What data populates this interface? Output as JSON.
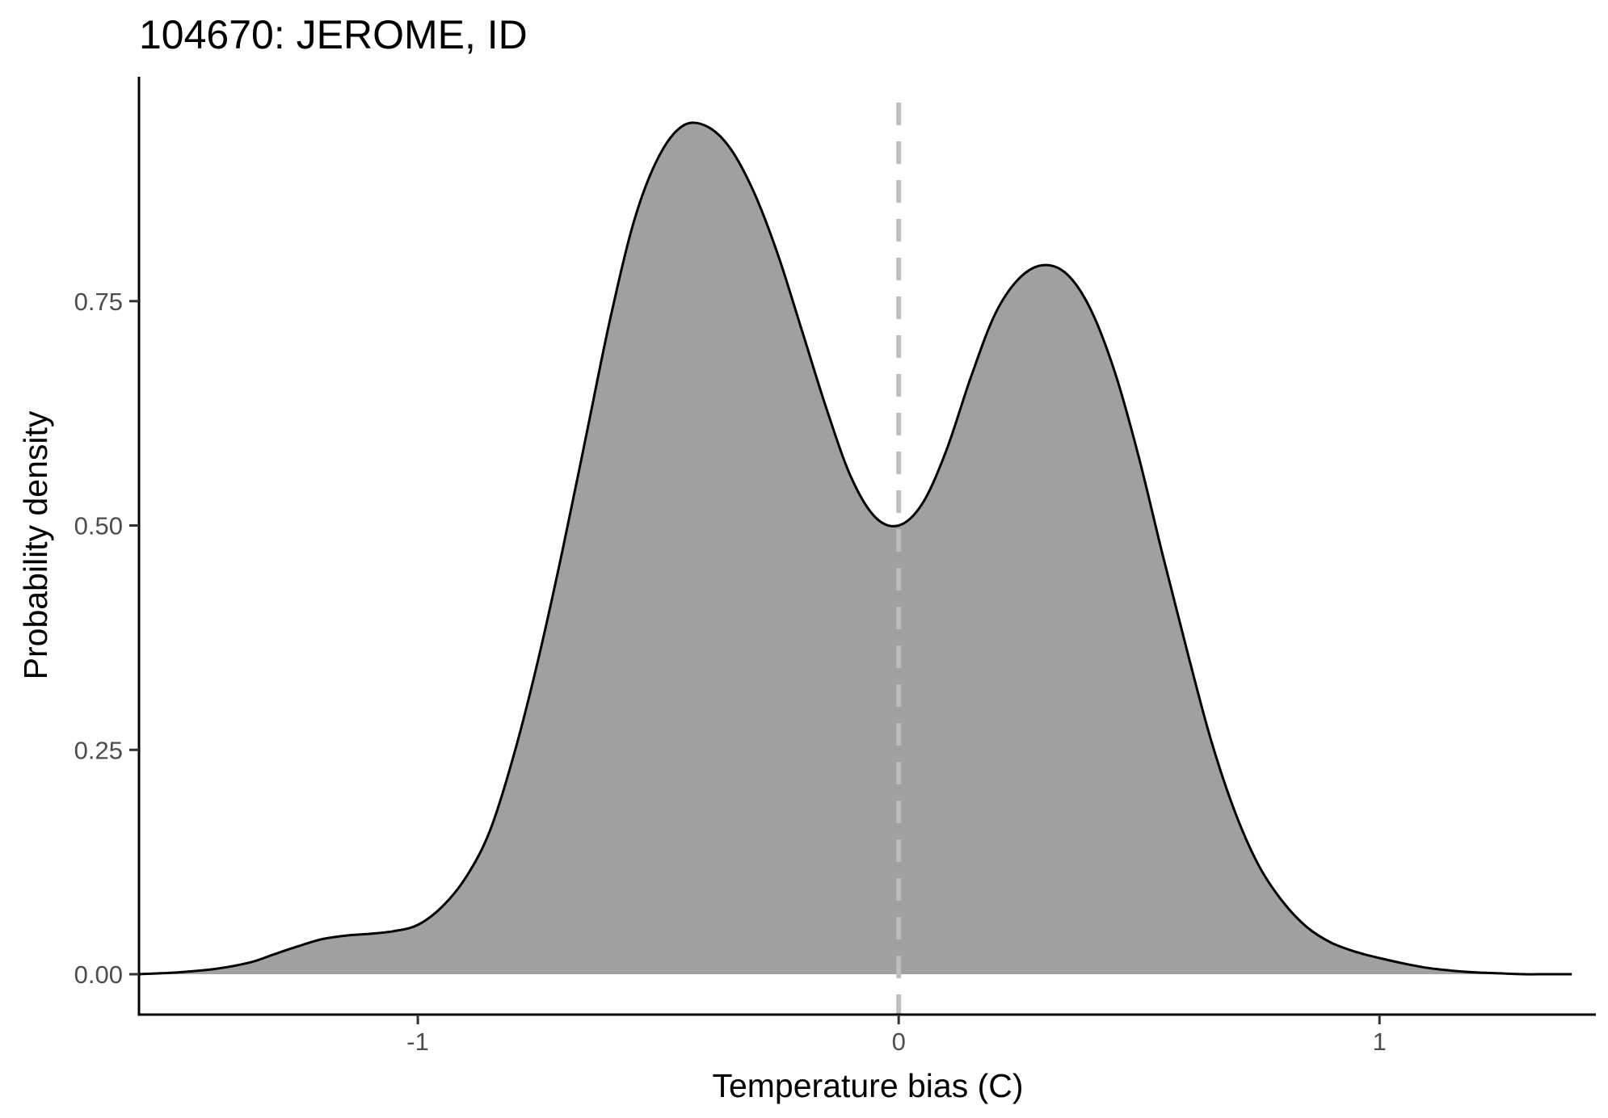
{
  "chart_data": {
    "type": "area",
    "title": "104670: JEROME, ID",
    "xlabel": "Temperature bias (C)",
    "ylabel": "Probability density",
    "xlim": [
      -1.58,
      1.45
    ],
    "ylim": [
      -0.045,
      1.0
    ],
    "x_ticks": [
      {
        "value": -1,
        "label": "-1"
      },
      {
        "value": 0,
        "label": "0"
      },
      {
        "value": 1,
        "label": "1"
      }
    ],
    "y_ticks": [
      {
        "value": 0,
        "label": "0.00"
      },
      {
        "value": 0.25,
        "label": "0.25"
      },
      {
        "value": 0.5,
        "label": "0.50"
      },
      {
        "value": 0.75,
        "label": "0.75"
      }
    ],
    "reference_line": {
      "x": 0,
      "style": "dashed",
      "color": "#bebebe"
    },
    "fill_color": "#a0a0a0",
    "line_color": "#000000",
    "grid": false,
    "legend": "none",
    "series": [
      {
        "x": [
          -1.58,
          -1.5,
          -1.42,
          -1.35,
          -1.3,
          -1.25,
          -1.2,
          -1.15,
          -1.1,
          -1.05,
          -1.0,
          -0.95,
          -0.9,
          -0.85,
          -0.8,
          -0.75,
          -0.7,
          -0.65,
          -0.6,
          -0.55,
          -0.5,
          -0.45,
          -0.4,
          -0.35,
          -0.3,
          -0.25,
          -0.2,
          -0.15,
          -0.1,
          -0.05,
          0.0,
          0.05,
          0.1,
          0.15,
          0.2,
          0.25,
          0.3,
          0.35,
          0.4,
          0.45,
          0.5,
          0.55,
          0.6,
          0.65,
          0.7,
          0.75,
          0.8,
          0.85,
          0.9,
          0.95,
          1.0,
          1.05,
          1.1,
          1.15,
          1.2,
          1.25,
          1.3,
          1.35,
          1.4
        ],
        "y": [
          0.0,
          0.002,
          0.006,
          0.013,
          0.022,
          0.031,
          0.039,
          0.043,
          0.045,
          0.048,
          0.055,
          0.075,
          0.108,
          0.16,
          0.245,
          0.35,
          0.47,
          0.6,
          0.73,
          0.84,
          0.91,
          0.945,
          0.945,
          0.92,
          0.87,
          0.8,
          0.715,
          0.63,
          0.555,
          0.51,
          0.5,
          0.525,
          0.585,
          0.665,
          0.735,
          0.775,
          0.79,
          0.78,
          0.74,
          0.67,
          0.575,
          0.465,
          0.36,
          0.26,
          0.18,
          0.12,
          0.08,
          0.052,
          0.035,
          0.025,
          0.018,
          0.012,
          0.007,
          0.004,
          0.002,
          0.001,
          0.0,
          0.0,
          0.0
        ]
      }
    ]
  }
}
